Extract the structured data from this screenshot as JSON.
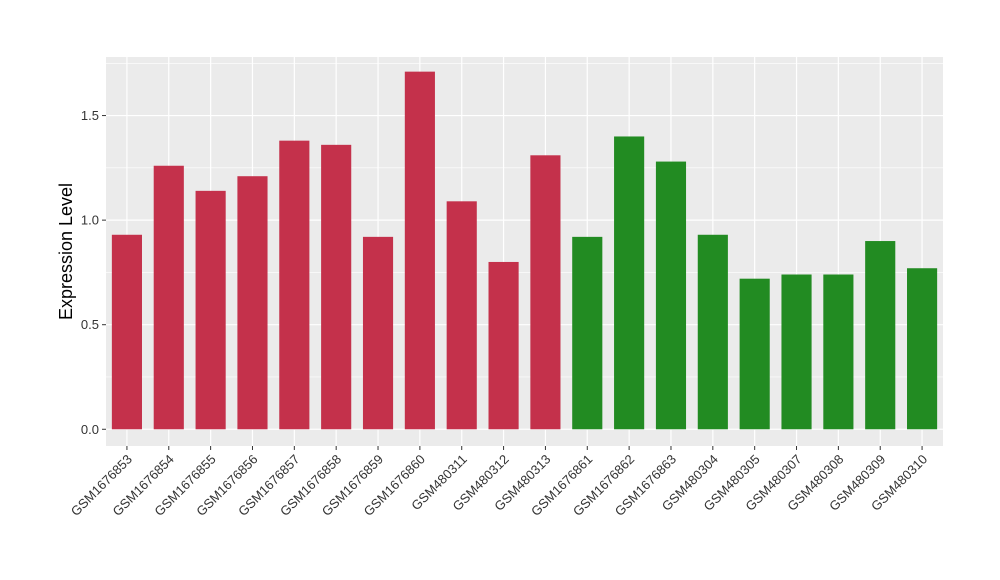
{
  "chart_data": {
    "type": "bar",
    "title": "",
    "xlabel": "",
    "ylabel": "Expression Level",
    "ylim": [
      -0.08,
      1.78
    ],
    "yticks": [
      0.0,
      0.5,
      1.0,
      1.5
    ],
    "ytick_labels": [
      "0.0",
      "0.5",
      "1.0",
      "1.5"
    ],
    "grid": true,
    "panel_background": "#EBEBEB",
    "grid_color": "#FFFFFF",
    "legend": "none",
    "categories": [
      "GSM1676853",
      "GSM1676854",
      "GSM1676855",
      "GSM1676856",
      "GSM1676857",
      "GSM1676858",
      "GSM1676859",
      "GSM1676860",
      "GSM480311",
      "GSM480312",
      "GSM480313",
      "GSM1676861",
      "GSM1676862",
      "GSM1676863",
      "GSM480304",
      "GSM480305",
      "GSM480307",
      "GSM480308",
      "GSM480309",
      "GSM480310"
    ],
    "values": [
      0.93,
      1.26,
      1.14,
      1.21,
      1.38,
      1.36,
      0.92,
      1.71,
      1.09,
      0.8,
      1.31,
      0.92,
      1.4,
      1.28,
      0.93,
      0.72,
      0.74,
      0.74,
      0.9,
      0.77
    ],
    "groups": [
      "red",
      "red",
      "red",
      "red",
      "red",
      "red",
      "red",
      "red",
      "red",
      "red",
      "red",
      "green",
      "green",
      "green",
      "green",
      "green",
      "green",
      "green",
      "green",
      "green"
    ],
    "colors": {
      "red": "#C4314B",
      "green": "#228B22"
    }
  }
}
